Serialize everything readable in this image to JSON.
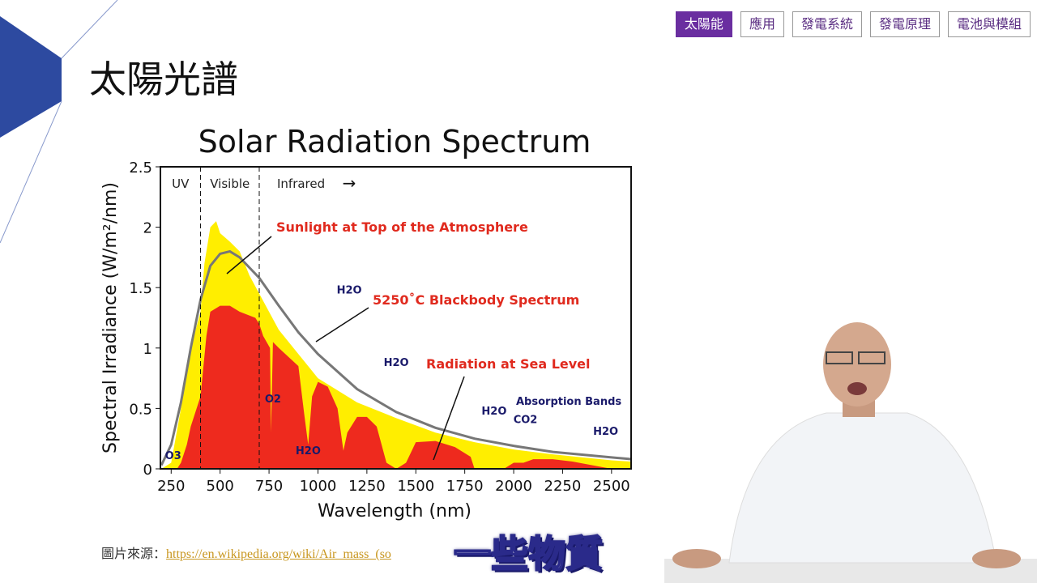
{
  "nav": {
    "tabs": [
      "太陽能",
      "應用",
      "發電系統",
      "發電原理",
      "電池與模組"
    ],
    "active": 0
  },
  "slide_title": "太陽光譜",
  "source": {
    "label": "圖片來源：",
    "link": "https://en.wikipedia.org/wiki/Air_mass_(so"
  },
  "subtitle": "一些物質",
  "colors": {
    "accent": "#6a2ea0",
    "toa": "#ffee00",
    "sea": "#ee2a1e",
    "blackbody": "#777777",
    "deco": "#2d4aa0"
  },
  "chart_data": {
    "type": "area",
    "title": "Solar Radiation Spectrum",
    "xlabel": "Wavelength (nm)",
    "ylabel": "Spectral Irradiance (W/m²/nm)",
    "xlim": [
      195,
      2600
    ],
    "ylim": [
      0,
      2.5
    ],
    "xticks": [
      250,
      500,
      750,
      1000,
      1250,
      1500,
      1750,
      2000,
      2250,
      2500
    ],
    "yticks": [
      0,
      0.5,
      1,
      1.5,
      2,
      2.5
    ],
    "ytick_labels": [
      "0",
      "0.5",
      "1",
      "1.5",
      "2",
      "2.5"
    ],
    "regions": [
      {
        "label": "UV",
        "x": [
          195,
          400
        ]
      },
      {
        "label": "Visible",
        "x": [
          400,
          700
        ]
      },
      {
        "label": "Infrared",
        "x": [
          700,
          2600
        ]
      }
    ],
    "series": [
      {
        "name": "Sunlight at Top of the Atmosphere",
        "type": "area",
        "color": "#ffee00",
        "x": [
          200,
          250,
          300,
          350,
          400,
          420,
          450,
          480,
          500,
          550,
          600,
          650,
          700,
          800,
          900,
          1000,
          1200,
          1400,
          1600,
          1800,
          2000,
          2200,
          2500,
          2600
        ],
        "y": [
          0,
          0.05,
          0.5,
          1.0,
          1.3,
          1.7,
          2.0,
          2.05,
          1.95,
          1.88,
          1.8,
          1.6,
          1.45,
          1.15,
          0.95,
          0.75,
          0.55,
          0.42,
          0.3,
          0.22,
          0.16,
          0.12,
          0.07,
          0.06
        ]
      },
      {
        "name": "Radiation at Sea Level",
        "type": "area",
        "color": "#ee2a1e",
        "x": [
          280,
          300,
          330,
          350,
          400,
          430,
          450,
          500,
          550,
          600,
          680,
          700,
          720,
          755,
          760,
          770,
          800,
          900,
          930,
          950,
          970,
          1000,
          1050,
          1100,
          1130,
          1150,
          1200,
          1250,
          1300,
          1350,
          1400,
          1450,
          1500,
          1600,
          1700,
          1780,
          1800,
          1950,
          2000,
          2050,
          2100,
          2200,
          2300,
          2400,
          2500,
          2600
        ],
        "y": [
          0,
          0.05,
          0.2,
          0.35,
          0.6,
          1.1,
          1.3,
          1.35,
          1.35,
          1.3,
          1.25,
          1.2,
          1.1,
          1.0,
          0.3,
          1.05,
          1.0,
          0.85,
          0.45,
          0.2,
          0.6,
          0.72,
          0.68,
          0.5,
          0.15,
          0.3,
          0.43,
          0.43,
          0.35,
          0.05,
          0,
          0.05,
          0.22,
          0.23,
          0.18,
          0.1,
          0,
          0,
          0.05,
          0.05,
          0.08,
          0.08,
          0.06,
          0.03,
          0.0,
          0
        ]
      },
      {
        "name": "5250°C Blackbody Spectrum",
        "type": "line",
        "color": "#777777",
        "x": [
          200,
          250,
          300,
          350,
          400,
          450,
          500,
          550,
          600,
          700,
          800,
          900,
          1000,
          1200,
          1400,
          1600,
          1800,
          2000,
          2200,
          2400,
          2600
        ],
        "y": [
          0.03,
          0.2,
          0.55,
          1.0,
          1.4,
          1.68,
          1.78,
          1.8,
          1.75,
          1.58,
          1.35,
          1.13,
          0.95,
          0.66,
          0.47,
          0.34,
          0.25,
          0.19,
          0.14,
          0.11,
          0.08
        ]
      }
    ],
    "annotations": {
      "toa": "Sunlight at Top of the Atmosphere",
      "bb": "5250˚C Blackbody Spectrum",
      "sea": "Radiation at Sea Level",
      "bands": "Absorption Bands",
      "arrow": "→"
    },
    "absorbers": [
      {
        "label": "O3",
        "x": 260,
        "y": 0.08
      },
      {
        "label": "O2",
        "x": 770,
        "y": 0.55
      },
      {
        "label": "H2O",
        "x": 950,
        "y": 0.12
      },
      {
        "label": "H2O",
        "x": 1160,
        "y": 1.45
      },
      {
        "label": "H2O",
        "x": 1400,
        "y": 0.85
      },
      {
        "label": "H2O",
        "x": 1900,
        "y": 0.45
      },
      {
        "label": "CO2",
        "x": 2060,
        "y": 0.38
      },
      {
        "label": "H2O",
        "x": 2470,
        "y": 0.28
      }
    ]
  }
}
